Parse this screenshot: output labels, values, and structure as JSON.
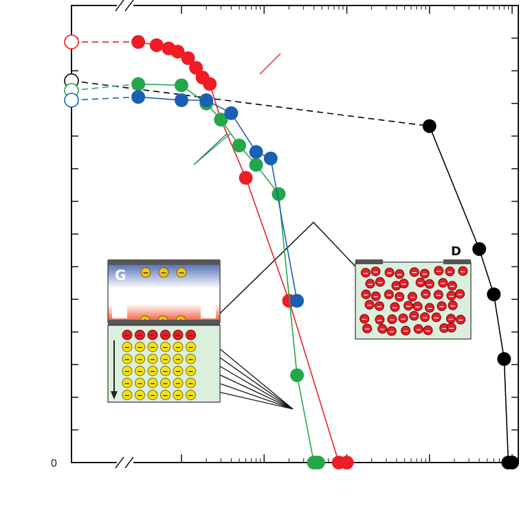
{
  "chart_data": {
    "type": "scatter",
    "x_scale": "log",
    "x_break_after_origin": true,
    "grid": false,
    "tick_labels": {
      "origin": "0"
    },
    "series": [
      {
        "color": "#ee1c25",
        "x": [
          30000000,
          50000000,
          70000000,
          90000000,
          120000000,
          150000000,
          180000000,
          220000000,
          300000000,
          600000000,
          2000000000,
          8000000000,
          10000000000
        ],
        "y": [
          6.5,
          6.45,
          6.4,
          6.35,
          6.25,
          6.1,
          5.95,
          5.85,
          5.3,
          4.4,
          2.5,
          0.0,
          0.0
        ],
        "extrapolated": {
          "x": 30000000,
          "y": 6.5
        }
      },
      {
        "color": "#000000",
        "x": [
          100000000000,
          400000000000,
          600000000000,
          800000000000,
          900000000000,
          1000000000000
        ],
        "y": [
          5.2,
          3.3,
          2.6,
          1.6,
          0.0,
          0.0
        ],
        "extrapolated": {
          "x": 30000000,
          "y": 5.9
        }
      },
      {
        "color": "#22a84a",
        "x": [
          30000000,
          100000000,
          200000000,
          300000000,
          500000000,
          800000000,
          1500000000,
          2500000000,
          4000000000,
          4500000000
        ],
        "y": [
          5.85,
          5.83,
          5.55,
          5.3,
          4.9,
          4.6,
          4.15,
          1.35,
          0.0,
          0.0
        ],
        "extrapolated": {
          "x": 30000000,
          "y": 5.75
        }
      },
      {
        "color": "#1a5fb4",
        "x": [
          30000000,
          100000000,
          200000000,
          400000000,
          800000000,
          1200000000,
          2500000000
        ],
        "y": [
          5.65,
          5.6,
          5.6,
          5.4,
          4.8,
          4.7,
          2.5
        ],
        "extrapolated": {
          "x": 30000000,
          "y": 5.6
        }
      }
    ]
  },
  "insets": {
    "left": {
      "gate_letter": "G",
      "gate_charges": [
        "−",
        "−",
        "−"
      ],
      "interface_charges": [
        "+",
        "+",
        "+"
      ],
      "carrier_symbol": "−",
      "rows": 6,
      "cols": 6
    },
    "right": {
      "corner_letter": "D",
      "carrier_symbol": "−"
    }
  }
}
